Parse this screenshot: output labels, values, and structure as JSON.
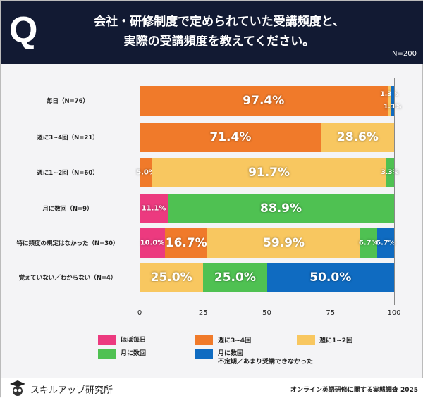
{
  "header": {
    "q": "Q",
    "title_line1": "会社・研修制度で定められていた受講頻度と、",
    "title_line2": "実際の受講頻度を教えてください。",
    "n": "N=200"
  },
  "chart_data": {
    "type": "bar",
    "orientation": "horizontal",
    "stacked": true,
    "categories": [
      "毎日（N=76）",
      "週に3~4回（N=21）",
      "週に1~2回（N=60）",
      "月に数回（N=9）",
      "特に頻度の規定はなかった（N=30）",
      "覚えていない／わからない（N=4）"
    ],
    "series": [
      {
        "name": "ほぼ毎日",
        "color": "#ec3a7f",
        "values": [
          0,
          0,
          0,
          11.1,
          10.0,
          0
        ]
      },
      {
        "name": "週に3~4回",
        "color": "#f07a2a",
        "values": [
          97.4,
          71.4,
          5.0,
          0,
          16.7,
          0
        ]
      },
      {
        "name": "週に1~2回",
        "color": "#f8c760",
        "values": [
          1.3,
          28.6,
          91.7,
          0,
          59.9,
          25.0
        ]
      },
      {
        "name": "月に数回",
        "color": "#4fc152",
        "values": [
          0,
          0,
          3.3,
          88.9,
          6.7,
          25.0
        ]
      },
      {
        "name": "月に数回\n不定期／あまり受講できなかった",
        "color": "#0f6bc1",
        "values": [
          1.3,
          0,
          0,
          0,
          6.7,
          50.0
        ]
      }
    ],
    "xlim": [
      0,
      100
    ],
    "xticks": [
      "0",
      "25",
      "50",
      "75",
      "100"
    ],
    "legend": "bottom"
  },
  "legend": {
    "items": [
      "ほぼ毎日",
      "週に3~4回",
      "週に1~2回",
      "月に数回"
    ],
    "item5_line1": "月に数回",
    "item5_line2": "不定期／あまり受講できなかった"
  },
  "footer": {
    "brand": "スキルアップ研究所",
    "survey": "オンライン英語研修に関する実態調査 2025"
  }
}
